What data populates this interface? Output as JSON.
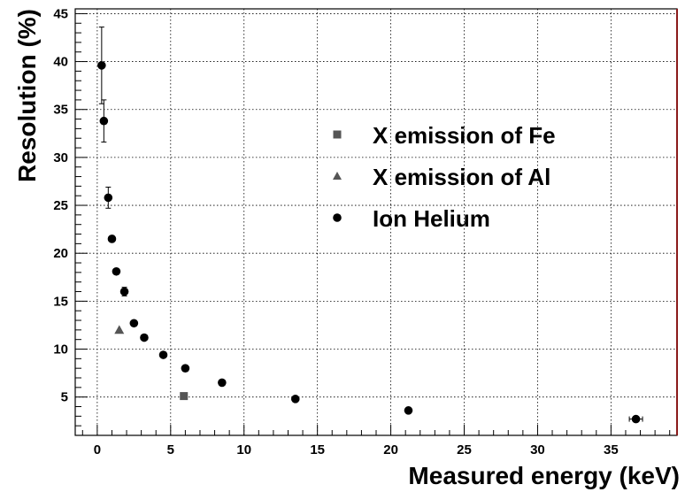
{
  "chart_data": {
    "type": "scatter",
    "title": "",
    "xlabel": "Measured energy (keV)",
    "ylabel": "Resolution (%)",
    "xlim": [
      -1.5,
      39.5
    ],
    "ylim": [
      1,
      45.5
    ],
    "grid": true,
    "legend_position": "center-right",
    "x_ticks": [
      0,
      5,
      10,
      15,
      20,
      25,
      30,
      35
    ],
    "y_ticks": [
      5,
      10,
      15,
      20,
      25,
      30,
      35,
      40,
      45
    ],
    "series": [
      {
        "name": "X emission of Fe",
        "marker": "square",
        "color": "#555555",
        "points": [
          {
            "x": 5.9,
            "y": 5.1
          }
        ]
      },
      {
        "name": "X emission of Al",
        "marker": "triangle",
        "color": "#555555",
        "points": [
          {
            "x": 1.5,
            "y": 12.0
          }
        ]
      },
      {
        "name": "Ion Helium",
        "marker": "circle",
        "color": "#000000",
        "points": [
          {
            "x": 0.3,
            "y": 39.6,
            "yerr": 4.0
          },
          {
            "x": 0.45,
            "y": 33.8,
            "yerr": 2.2
          },
          {
            "x": 0.75,
            "y": 25.8,
            "yerr": 1.1
          },
          {
            "x": 1.0,
            "y": 21.5
          },
          {
            "x": 1.3,
            "y": 18.1
          },
          {
            "x": 1.85,
            "y": 16.0,
            "yerr": 0.45
          },
          {
            "x": 2.5,
            "y": 12.7
          },
          {
            "x": 3.2,
            "y": 11.2
          },
          {
            "x": 4.5,
            "y": 9.4
          },
          {
            "x": 6.0,
            "y": 8.0
          },
          {
            "x": 8.5,
            "y": 6.5
          },
          {
            "x": 13.5,
            "y": 4.8
          },
          {
            "x": 21.2,
            "y": 3.6
          },
          {
            "x": 36.7,
            "y": 2.7,
            "xerr": 0.45
          }
        ]
      }
    ]
  }
}
